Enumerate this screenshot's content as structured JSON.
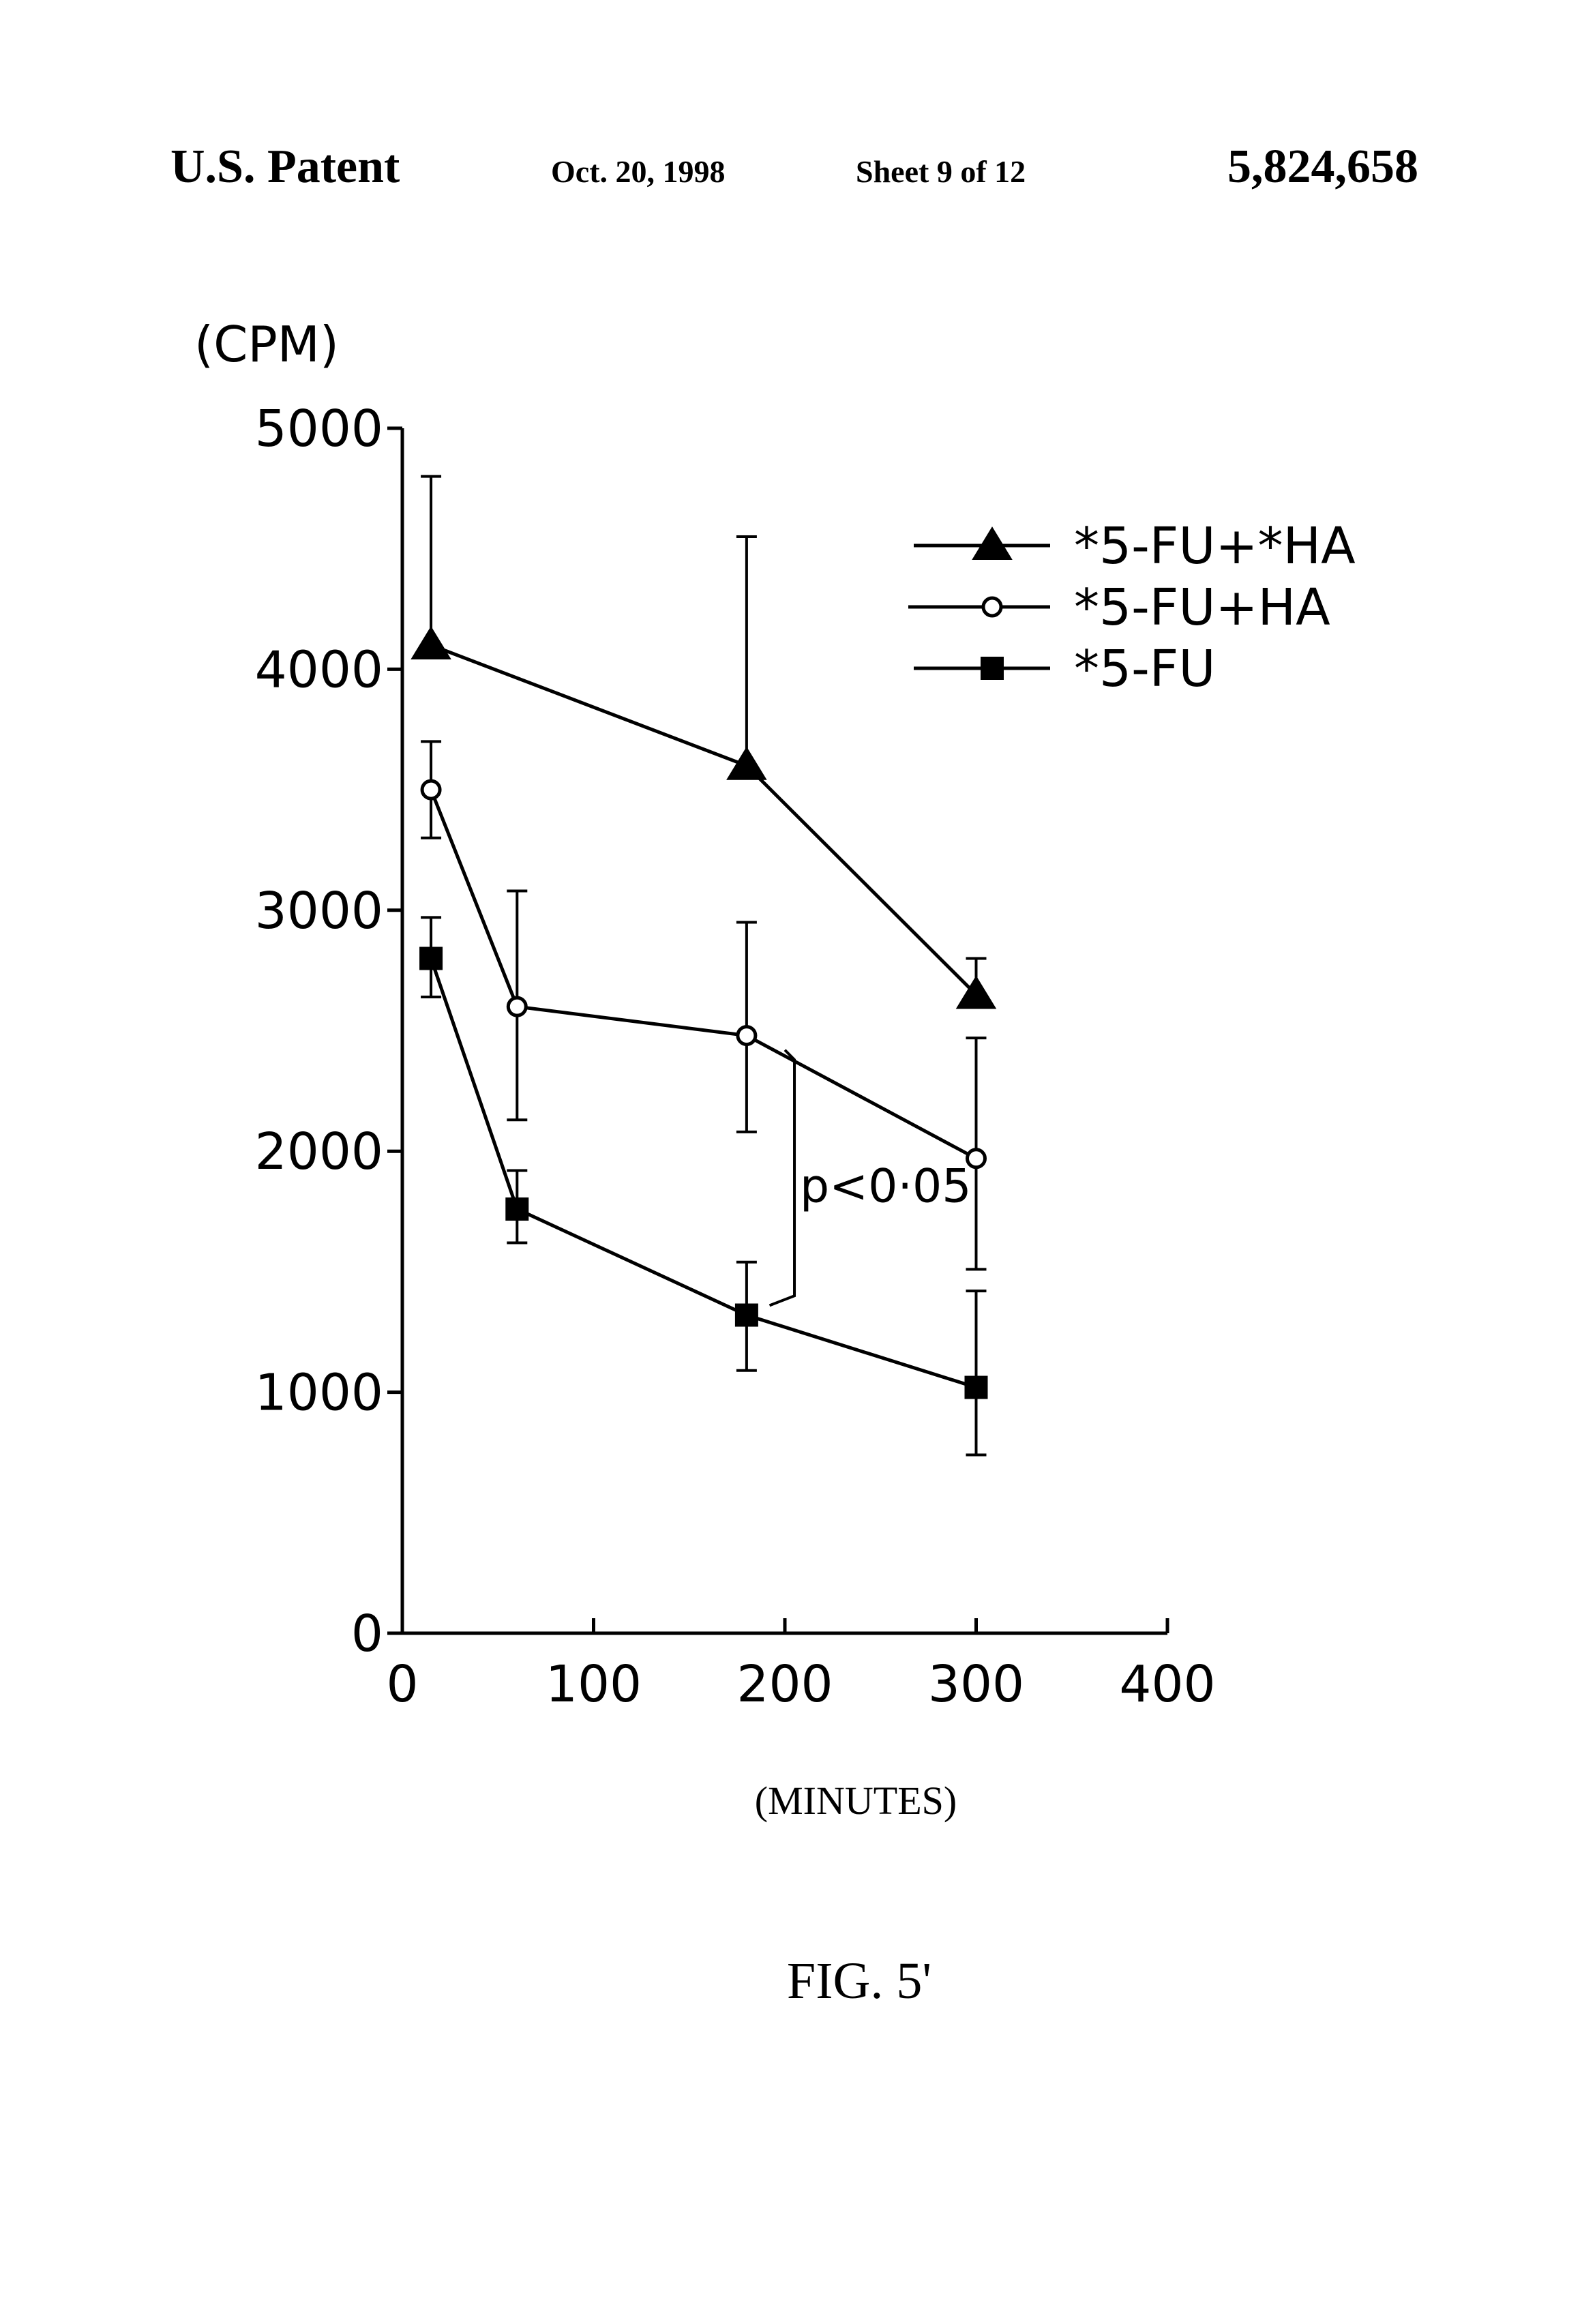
{
  "header": {
    "left": "U.S. Patent",
    "date": "Oct. 20, 1998",
    "sheet": "Sheet 9 of 12",
    "number": "5,824,658"
  },
  "figure_label": "FIG. 5'",
  "chart_data": {
    "type": "line",
    "ylabel": "(CPM)",
    "xlabel": "(MINUTES)",
    "xlim": [
      0,
      400
    ],
    "ylim": [
      0,
      5000
    ],
    "xticks": [
      "0",
      "100",
      "200",
      "300",
      "400"
    ],
    "yticks": [
      "0",
      "1000",
      "2000",
      "3000",
      "4000",
      "5000"
    ],
    "grid": false,
    "legend_position": "top-right",
    "annotation": "p<0·05",
    "series": [
      {
        "name": "*5-FU+*HA",
        "marker": "triangle",
        "x": [
          15,
          180,
          300
        ],
        "y": [
          4100,
          3600,
          2650
        ],
        "err_upper": [
          4800,
          4550,
          2800
        ],
        "err_lower": [
          null,
          null,
          null
        ]
      },
      {
        "name": "*5-FU+HA",
        "marker": "circle-open",
        "x": [
          15,
          60,
          180,
          300
        ],
        "y": [
          3500,
          2600,
          2480,
          1970
        ],
        "err_upper": [
          3700,
          3080,
          2950,
          2470
        ],
        "err_lower": [
          3300,
          2130,
          2080,
          1510
        ]
      },
      {
        "name": "*5-FU",
        "marker": "square",
        "x": [
          15,
          60,
          180,
          300
        ],
        "y": [
          2800,
          1760,
          1320,
          1020
        ],
        "err_upper": [
          2970,
          1920,
          1540,
          1420
        ],
        "err_lower": [
          2640,
          1620,
          1090,
          740
        ]
      }
    ]
  }
}
